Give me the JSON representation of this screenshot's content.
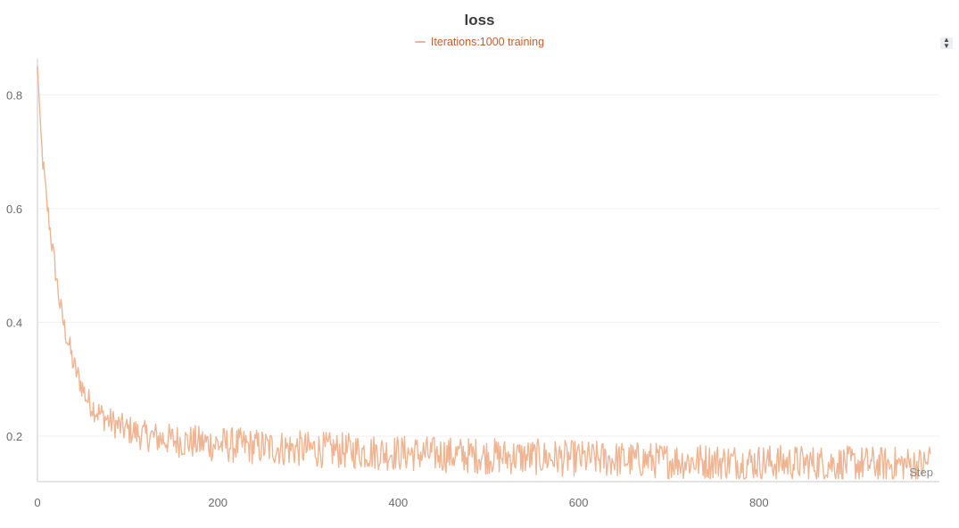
{
  "chart_data": {
    "type": "line",
    "title": "loss",
    "xlabel": "Step",
    "ylabel": "",
    "xlim": [
      0,
      1000
    ],
    "ylim": [
      0.12,
      0.86
    ],
    "x_ticks": [
      0,
      200,
      400,
      600,
      800
    ],
    "y_ticks": [
      0.2,
      0.4,
      0.6,
      0.8
    ],
    "grid": true,
    "legend_position": "top-center",
    "series": [
      {
        "name": "Iterations:1000 training",
        "color": "#efb592",
        "x_start": 0,
        "x_step": 5,
        "values": [
          0.85,
          0.7,
          0.615,
          0.55,
          0.49,
          0.43,
          0.39,
          0.36,
          0.325,
          0.305,
          0.285,
          0.265,
          0.255,
          0.245,
          0.238,
          0.232,
          0.226,
          0.222,
          0.218,
          0.214,
          0.21,
          0.21,
          0.205,
          0.202,
          0.2,
          0.2,
          0.198,
          0.196,
          0.195,
          0.194,
          0.193,
          0.192,
          0.191,
          0.19,
          0.19,
          0.189,
          0.188,
          0.188,
          0.187,
          0.186,
          0.186,
          0.185,
          0.185,
          0.184,
          0.184,
          0.183,
          0.183,
          0.182,
          0.182,
          0.181,
          0.181,
          0.18,
          0.18,
          0.18,
          0.179,
          0.179,
          0.178,
          0.178,
          0.178,
          0.177,
          0.177,
          0.177,
          0.176,
          0.176,
          0.176,
          0.175,
          0.175,
          0.175,
          0.174,
          0.174,
          0.174,
          0.173,
          0.173,
          0.173,
          0.172,
          0.172,
          0.172,
          0.171,
          0.171,
          0.171,
          0.17,
          0.17,
          0.17,
          0.17,
          0.169,
          0.169,
          0.169,
          0.168,
          0.168,
          0.168,
          0.168,
          0.167,
          0.167,
          0.167,
          0.167,
          0.166,
          0.166,
          0.166,
          0.166,
          0.165,
          0.165,
          0.165,
          0.165,
          0.164,
          0.164,
          0.164,
          0.164,
          0.163,
          0.163,
          0.163,
          0.163,
          0.163,
          0.162,
          0.162,
          0.162,
          0.162,
          0.161,
          0.161,
          0.161,
          0.161,
          0.161,
          0.16,
          0.16,
          0.16,
          0.16,
          0.16,
          0.159,
          0.159,
          0.159,
          0.159,
          0.159,
          0.158,
          0.158,
          0.158,
          0.158,
          0.158,
          0.158,
          0.157,
          0.157,
          0.157,
          0.157,
          0.157,
          0.157,
          0.156,
          0.156,
          0.156,
          0.156,
          0.156,
          0.156,
          0.155,
          0.155,
          0.155,
          0.155,
          0.155,
          0.155,
          0.155,
          0.154,
          0.154,
          0.154,
          0.154,
          0.154,
          0.154,
          0.154,
          0.153,
          0.153,
          0.153,
          0.153,
          0.153,
          0.153,
          0.153,
          0.152,
          0.152,
          0.152,
          0.152,
          0.152,
          0.152,
          0.152,
          0.152,
          0.151,
          0.151,
          0.151,
          0.151,
          0.151,
          0.151,
          0.151,
          0.151,
          0.15,
          0.15,
          0.15,
          0.15,
          0.15,
          0.15,
          0.15,
          0.15,
          0.15,
          0.149,
          0.149,
          0.149,
          0.168
        ]
      }
    ]
  }
}
